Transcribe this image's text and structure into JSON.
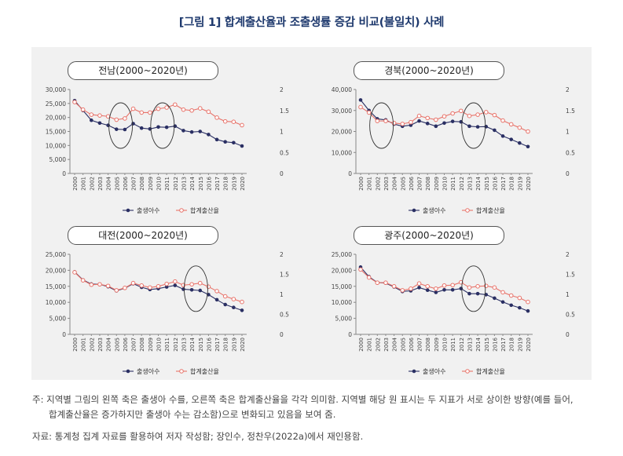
{
  "figure_title": "[그림 1] 합계출산율과 조출생률 증감 비교(불일치) 사례",
  "note_line1": "주: 지역별 그림의 왼쪽 축은 출생아 수를, 오른쪽 축은 합계출산율을 각각 의미함. 지역별 해당 원 표시는 두 지표가 서로 상이한 방향(예를 들어,",
  "note_line2": "합계출산율은 증가하지만 출생아 수는 감소함)으로 변화되고 있음을 보여 줌.",
  "source": "자료: 통계청 집계 자료를 활용하여 저자 작성함; 장인수, 정찬우(2022a)에서 재인용함.",
  "colors": {
    "births": "#2a2f63",
    "tfr": "#e8736a",
    "title": "#1f3a6e"
  },
  "chart_data": [
    {
      "type": "line",
      "title": "전남(2000~2020년)",
      "x": [
        "2000",
        "2001",
        "2002",
        "2003",
        "2004",
        "2005",
        "2006",
        "2007",
        "2008",
        "2009",
        "2010",
        "2011",
        "2012",
        "2013",
        "2014",
        "2015",
        "2016",
        "2017",
        "2018",
        "2019",
        "2020"
      ],
      "series": [
        {
          "name": "출생아수",
          "axis": "left",
          "values": [
            26000,
            22500,
            19000,
            18000,
            17200,
            15800,
            15700,
            17800,
            16200,
            15900,
            16600,
            16500,
            16900,
            15300,
            14800,
            15000,
            13900,
            12100,
            11300,
            11000,
            9800
          ]
        },
        {
          "name": "합계출산율",
          "axis": "right",
          "values": [
            1.7,
            1.52,
            1.4,
            1.38,
            1.36,
            1.28,
            1.31,
            1.54,
            1.45,
            1.45,
            1.54,
            1.57,
            1.64,
            1.52,
            1.5,
            1.55,
            1.47,
            1.33,
            1.24,
            1.23,
            1.15
          ]
        }
      ],
      "yleft_ticks": [
        "0",
        "5,000",
        "10,000",
        "15,000",
        "20,000",
        "25,000",
        "30,000"
      ],
      "yleft_lim": [
        0,
        30000
      ],
      "yright_ticks": [
        "0",
        "0.5",
        "1",
        "1.5",
        "2"
      ],
      "yright_lim": [
        0,
        2
      ],
      "circles_around_years": [
        [
          "2005",
          "2006"
        ],
        [
          "2010",
          "2011"
        ]
      ]
    },
    {
      "type": "line",
      "title": "경북(2000~2020년)",
      "x": [
        "2000",
        "2001",
        "2002",
        "2003",
        "2004",
        "2005",
        "2006",
        "2007",
        "2008",
        "2009",
        "2010",
        "2011",
        "2012",
        "2013",
        "2014",
        "2015",
        "2016",
        "2017",
        "2018",
        "2019",
        "2020"
      ],
      "series": [
        {
          "name": "출생아수",
          "axis": "left",
          "values": [
            35000,
            30000,
            26000,
            25500,
            23500,
            22500,
            23000,
            25000,
            23800,
            22500,
            24000,
            24800,
            24600,
            22500,
            22200,
            22300,
            20600,
            17800,
            16200,
            14500,
            12800
          ]
        },
        {
          "name": "합계출산율",
          "axis": "right",
          "values": [
            1.58,
            1.45,
            1.25,
            1.25,
            1.2,
            1.18,
            1.22,
            1.37,
            1.32,
            1.28,
            1.36,
            1.43,
            1.49,
            1.37,
            1.4,
            1.46,
            1.39,
            1.26,
            1.17,
            1.09,
            1.0
          ]
        }
      ],
      "yleft_ticks": [
        "0",
        "10,000",
        "20,000",
        "30,000",
        "40,000"
      ],
      "yleft_lim": [
        0,
        40000
      ],
      "yright_ticks": [
        "0",
        "0.5",
        "1",
        "1.5",
        "2"
      ],
      "yright_lim": [
        0,
        2
      ],
      "circles_around_years": [
        [
          "2002",
          "2003"
        ],
        [
          "2013",
          "2014"
        ]
      ]
    },
    {
      "type": "line",
      "title": "대전(2000~2020년)",
      "x": [
        "2000",
        "2001",
        "2002",
        "2003",
        "2004",
        "2005",
        "2006",
        "2007",
        "2008",
        "2009",
        "2010",
        "2011",
        "2012",
        "2013",
        "2014",
        "2015",
        "2016",
        "2017",
        "2018",
        "2019",
        "2020"
      ],
      "series": [
        {
          "name": "출생아수",
          "axis": "left",
          "values": [
            19500,
            17000,
            15700,
            15600,
            14900,
            13600,
            14400,
            15800,
            14700,
            14000,
            14300,
            14800,
            15300,
            14100,
            13900,
            13700,
            12400,
            10800,
            9300,
            8400,
            7500
          ]
        },
        {
          "name": "합계출산율",
          "axis": "right",
          "values": [
            1.55,
            1.35,
            1.24,
            1.25,
            1.21,
            1.1,
            1.16,
            1.28,
            1.22,
            1.17,
            1.2,
            1.26,
            1.32,
            1.23,
            1.25,
            1.28,
            1.19,
            1.08,
            0.95,
            0.88,
            0.81
          ]
        }
      ],
      "yleft_ticks": [
        "0",
        "5,000",
        "10,000",
        "15,000",
        "20,000",
        "25,000"
      ],
      "yleft_lim": [
        0,
        25000
      ],
      "yright_ticks": [
        "0",
        "0.5",
        "1",
        "1.5",
        "2"
      ],
      "yright_lim": [
        0,
        2
      ],
      "circles_around_years": [
        [
          "2014",
          "2015"
        ]
      ]
    },
    {
      "type": "line",
      "title": "광주(2000~2020년)",
      "x": [
        "2000",
        "2001",
        "2002",
        "2003",
        "2004",
        "2005",
        "2006",
        "2007",
        "2008",
        "2009",
        "2010",
        "2011",
        "2012",
        "2013",
        "2014",
        "2015",
        "2016",
        "2017",
        "2018",
        "2019",
        "2020"
      ],
      "series": [
        {
          "name": "출생아수",
          "axis": "left",
          "values": [
            21000,
            18000,
            16200,
            16000,
            14800,
            13400,
            13600,
            14600,
            13800,
            13100,
            13900,
            13900,
            14300,
            12700,
            12700,
            12400,
            11300,
            10100,
            9100,
            8300,
            7300
          ]
        },
        {
          "name": "합계출산율",
          "axis": "right",
          "values": [
            1.62,
            1.42,
            1.29,
            1.29,
            1.2,
            1.1,
            1.14,
            1.27,
            1.2,
            1.14,
            1.22,
            1.23,
            1.3,
            1.17,
            1.2,
            1.21,
            1.17,
            1.05,
            0.97,
            0.91,
            0.81
          ]
        }
      ],
      "yleft_ticks": [
        "0",
        "5,000",
        "10,000",
        "15,000",
        "20,000",
        "25,000"
      ],
      "yleft_lim": [
        0,
        25000
      ],
      "yright_ticks": [
        "0",
        "0.5",
        "1",
        "1.5",
        "2"
      ],
      "yright_lim": [
        0,
        2
      ],
      "circles_around_years": [
        [
          "2013",
          "2014"
        ]
      ]
    }
  ]
}
